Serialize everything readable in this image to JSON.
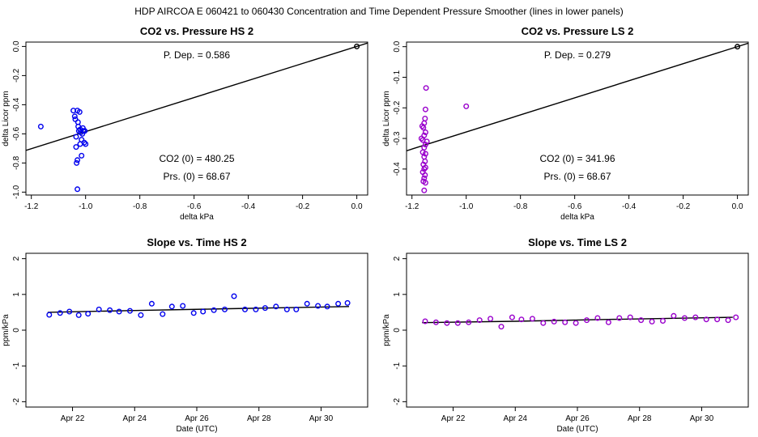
{
  "suptitle": "HDP   AIRCOA E   060421 to 060430   Concentration and Time Dependent Pressure Smoother (lines in lower panels)",
  "chart_data": [
    {
      "id": "p1",
      "type": "scatter",
      "title": "CO2 vs. Pressure HS 2",
      "xlabel": "delta kPa",
      "ylabel": "delta Licor ppm",
      "xlim": [
        -1.22,
        0.04
      ],
      "ylim": [
        -1.02,
        0.03
      ],
      "xticks": [
        -1.2,
        -1.0,
        -0.8,
        -0.6,
        -0.4,
        -0.2,
        0.0
      ],
      "xtick_labels": [
        "-1.2",
        "-1.0",
        "-0.8",
        "-0.6",
        "-0.4",
        "-0.2",
        "0.0"
      ],
      "yticks": [
        0,
        -0.2,
        -0.4,
        -0.6,
        -0.8,
        -1.0
      ],
      "ytick_labels": [
        "0.0",
        "-0.2",
        "-0.4",
        "-0.6",
        "-0.8",
        "-1.0"
      ],
      "color": "#0000ee",
      "line": [
        [
          -1.22,
          -0.7136
        ],
        [
          0.04,
          0.0234
        ]
      ],
      "line_color": "#000000",
      "points": [
        [
          -1.165,
          -0.55
        ],
        [
          -1.045,
          -0.44
        ],
        [
          -1.04,
          -0.48
        ],
        [
          -1.038,
          -0.5
        ],
        [
          -1.035,
          -0.62
        ],
        [
          -1.035,
          -0.69
        ],
        [
          -1.033,
          -0.8
        ],
        [
          -1.03,
          -0.78
        ],
        [
          -1.03,
          -0.44
        ],
        [
          -1.028,
          -0.52
        ],
        [
          -1.027,
          -0.55
        ],
        [
          -1.025,
          -0.58
        ],
        [
          -1.03,
          -0.98
        ],
        [
          -1.022,
          -0.45
        ],
        [
          -1.02,
          -0.57
        ],
        [
          -1.02,
          -0.67
        ],
        [
          -1.018,
          -0.59
        ],
        [
          -1.015,
          -0.64
        ],
        [
          -1.015,
          -0.75
        ],
        [
          -1.012,
          -0.6
        ],
        [
          -1.01,
          -0.56
        ],
        [
          -1.008,
          -0.58
        ],
        [
          -1.005,
          -0.66
        ],
        [
          -1.003,
          -0.58
        ],
        [
          -1.0,
          -0.67
        ]
      ],
      "ref_point": [
        0.0,
        0.0
      ],
      "ann_top": "P. Dep. =  0.586",
      "ann_bot1": "CO2 (0) =  480.25",
      "ann_bot2": "Prs. (0) =  68.67"
    },
    {
      "id": "p2",
      "type": "scatter",
      "title": "CO2 vs. Pressure LS 2",
      "xlabel": "delta kPa",
      "ylabel": "delta Licor ppm",
      "xlim": [
        -1.22,
        0.04
      ],
      "ylim": [
        -0.485,
        0.015
      ],
      "xticks": [
        -1.2,
        -1.0,
        -0.8,
        -0.6,
        -0.4,
        -0.2,
        0.0
      ],
      "xtick_labels": [
        "-1.2",
        "-1.0",
        "-0.8",
        "-0.6",
        "-0.4",
        "-0.2",
        "0.0"
      ],
      "yticks": [
        0,
        -0.1,
        -0.2,
        -0.3,
        -0.4
      ],
      "ytick_labels": [
        "0.0",
        "-0.1",
        "-0.2",
        "-0.3",
        "-0.4"
      ],
      "color": "#9900cc",
      "line": [
        [
          -1.22,
          -0.3404
        ],
        [
          0.04,
          0.0112
        ]
      ],
      "line_color": "#000000",
      "points": [
        [
          -1.0,
          -0.195
        ],
        [
          -1.148,
          -0.135
        ],
        [
          -1.15,
          -0.205
        ],
        [
          -1.152,
          -0.235
        ],
        [
          -1.155,
          -0.25
        ],
        [
          -1.158,
          -0.265
        ],
        [
          -1.15,
          -0.28
        ],
        [
          -1.155,
          -0.29
        ],
        [
          -1.16,
          -0.305
        ],
        [
          -1.15,
          -0.32
        ],
        [
          -1.155,
          -0.33
        ],
        [
          -1.16,
          -0.345
        ],
        [
          -1.15,
          -0.35
        ],
        [
          -1.155,
          -0.36
        ],
        [
          -1.152,
          -0.375
        ],
        [
          -1.158,
          -0.385
        ],
        [
          -1.15,
          -0.395
        ],
        [
          -1.155,
          -0.4
        ],
        [
          -1.16,
          -0.41
        ],
        [
          -1.152,
          -0.42
        ],
        [
          -1.155,
          -0.43
        ],
        [
          -1.158,
          -0.44
        ],
        [
          -1.15,
          -0.445
        ],
        [
          -1.155,
          -0.47
        ],
        [
          -1.162,
          -0.26
        ],
        [
          -1.165,
          -0.3
        ],
        [
          -1.145,
          -0.31
        ]
      ],
      "ref_point": [
        0.0,
        0.0
      ],
      "ann_top": "P. Dep. =  0.279",
      "ann_bot1": "CO2 (0) =  341.96",
      "ann_bot2": "Prs. (0) =  68.67"
    },
    {
      "id": "p3",
      "type": "scatter",
      "title": "Slope vs. Time HS 2",
      "xlabel": "Date (UTC)",
      "ylabel": "ppm/kPa",
      "xlim": [
        20.5,
        31.5
      ],
      "ylim": [
        -2.15,
        2.15
      ],
      "xticks": [
        22,
        24,
        26,
        28,
        30
      ],
      "xtick_labels": [
        "Apr 22",
        "Apr 24",
        "Apr 26",
        "Apr 28",
        "Apr 30"
      ],
      "yticks": [
        2,
        1,
        0,
        -1,
        -2
      ],
      "ytick_labels": [
        "2",
        "1",
        "0",
        "-1",
        "-2"
      ],
      "color": "#0000ee",
      "line": [
        [
          21.2,
          0.5
        ],
        [
          24.0,
          0.55
        ],
        [
          27.0,
          0.6
        ],
        [
          30.9,
          0.66
        ]
      ],
      "line_color": "#000000",
      "points": [
        [
          21.25,
          0.43
        ],
        [
          21.6,
          0.48
        ],
        [
          21.9,
          0.52
        ],
        [
          22.2,
          0.42
        ],
        [
          22.5,
          0.46
        ],
        [
          22.85,
          0.58
        ],
        [
          23.2,
          0.56
        ],
        [
          23.5,
          0.52
        ],
        [
          23.85,
          0.54
        ],
        [
          24.2,
          0.42
        ],
        [
          24.55,
          0.74
        ],
        [
          24.9,
          0.45
        ],
        [
          25.2,
          0.66
        ],
        [
          25.55,
          0.68
        ],
        [
          25.9,
          0.48
        ],
        [
          26.2,
          0.52
        ],
        [
          26.55,
          0.56
        ],
        [
          26.9,
          0.58
        ],
        [
          27.2,
          0.95
        ],
        [
          27.55,
          0.58
        ],
        [
          27.9,
          0.58
        ],
        [
          28.2,
          0.62
        ],
        [
          28.55,
          0.66
        ],
        [
          28.9,
          0.58
        ],
        [
          29.2,
          0.58
        ],
        [
          29.55,
          0.74
        ],
        [
          29.9,
          0.68
        ],
        [
          30.2,
          0.66
        ],
        [
          30.55,
          0.74
        ],
        [
          30.85,
          0.76
        ]
      ]
    },
    {
      "id": "p4",
      "type": "scatter",
      "title": "Slope vs. Time LS 2",
      "xlabel": "Date (UTC)",
      "ylabel": "ppm/kPa",
      "xlim": [
        20.5,
        31.5
      ],
      "ylim": [
        -2.15,
        2.15
      ],
      "xticks": [
        22,
        24,
        26,
        28,
        30
      ],
      "xtick_labels": [
        "Apr 22",
        "Apr 24",
        "Apr 26",
        "Apr 28",
        "Apr 30"
      ],
      "yticks": [
        2,
        1,
        0,
        -1,
        -2
      ],
      "ytick_labels": [
        "2",
        "1",
        "0",
        "-1",
        "-2"
      ],
      "color": "#9900cc",
      "line": [
        [
          21.0,
          0.21
        ],
        [
          24.0,
          0.25
        ],
        [
          27.0,
          0.3
        ],
        [
          31.0,
          0.36
        ]
      ],
      "line_color": "#000000",
      "points": [
        [
          21.1,
          0.25
        ],
        [
          21.45,
          0.22
        ],
        [
          21.8,
          0.2
        ],
        [
          22.15,
          0.2
        ],
        [
          22.5,
          0.22
        ],
        [
          22.85,
          0.28
        ],
        [
          23.2,
          0.32
        ],
        [
          23.55,
          0.1
        ],
        [
          23.9,
          0.36
        ],
        [
          24.2,
          0.3
        ],
        [
          24.55,
          0.32
        ],
        [
          24.9,
          0.2
        ],
        [
          25.25,
          0.24
        ],
        [
          25.6,
          0.22
        ],
        [
          25.95,
          0.2
        ],
        [
          26.3,
          0.28
        ],
        [
          26.65,
          0.34
        ],
        [
          27.0,
          0.22
        ],
        [
          27.35,
          0.34
        ],
        [
          27.7,
          0.36
        ],
        [
          28.05,
          0.28
        ],
        [
          28.4,
          0.24
        ],
        [
          28.75,
          0.26
        ],
        [
          29.1,
          0.4
        ],
        [
          29.45,
          0.34
        ],
        [
          29.8,
          0.36
        ],
        [
          30.15,
          0.3
        ],
        [
          30.5,
          0.3
        ],
        [
          30.85,
          0.28
        ],
        [
          31.1,
          0.36
        ]
      ]
    }
  ]
}
